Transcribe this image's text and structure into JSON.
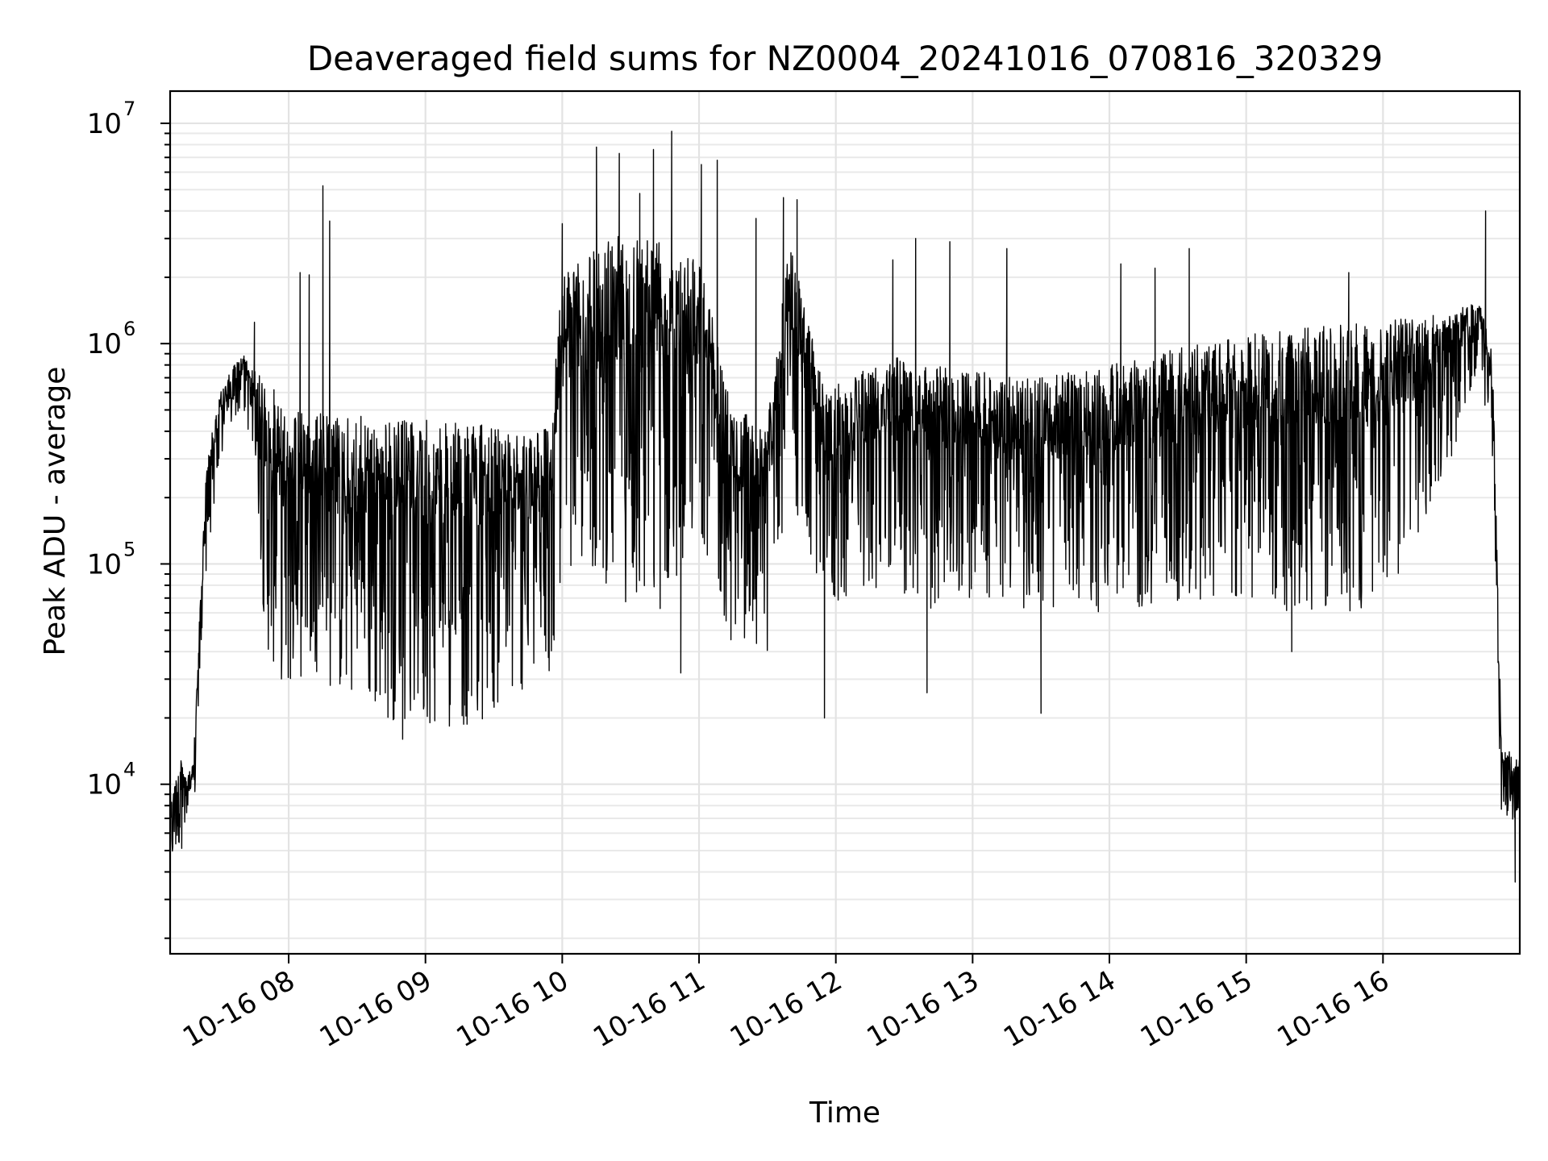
{
  "chart_data": {
    "type": "line",
    "title": "Deaveraged field sums for NZ0004_20241016_070816_320329",
    "xlabel": "Time",
    "ylabel": "Peak ADU - average",
    "y_scale": "log",
    "ylim": [
      1700,
      14000000
    ],
    "xlim": [
      "2024-10-16 07:08",
      "2024-10-16 17:00"
    ],
    "grid": true,
    "grid_minor": true,
    "x_tick_labels": [
      "10-16 08",
      "10-16 09",
      "10-16 10",
      "10-16 11",
      "10-16 12",
      "10-16 13",
      "10-16 14",
      "10-16 15",
      "10-16 16"
    ],
    "y_tick_labels": [
      {
        "value": 10000,
        "base": "10",
        "exp": "4"
      },
      {
        "value": 100000,
        "base": "10",
        "exp": "5"
      },
      {
        "value": 1000000,
        "base": "10",
        "exp": "6"
      },
      {
        "value": 10000000,
        "base": "10",
        "exp": "7"
      }
    ],
    "series": [
      {
        "color": "#000000",
        "envelope": [
          {
            "t": "07:08",
            "low": 4000,
            "high": 9000
          },
          {
            "t": "07:12",
            "low": 5000,
            "high": 13000
          },
          {
            "t": "07:18",
            "low": 5500,
            "high": 12000
          },
          {
            "t": "07:24",
            "low": 100000,
            "high": 300000
          },
          {
            "t": "07:30",
            "low": 280000,
            "high": 600000
          },
          {
            "t": "07:36",
            "low": 450000,
            "high": 800000
          },
          {
            "t": "07:40",
            "low": 500000,
            "high": 900000
          },
          {
            "t": "07:45",
            "low": 300000,
            "high": 750000
          },
          {
            "t": "07:50",
            "low": 40000,
            "high": 700000
          },
          {
            "t": "08:00",
            "low": 25000,
            "high": 500000
          },
          {
            "t": "08:10",
            "low": 35000,
            "high": 500000
          },
          {
            "t": "08:20",
            "low": 25000,
            "high": 480000
          },
          {
            "t": "08:40",
            "low": 20000,
            "high": 460000
          },
          {
            "t": "09:00",
            "low": 18000,
            "high": 450000
          },
          {
            "t": "09:20",
            "low": 18000,
            "high": 430000
          },
          {
            "t": "09:40",
            "low": 25000,
            "high": 420000
          },
          {
            "t": "09:55",
            "low": 30000,
            "high": 450000
          },
          {
            "t": "10:00",
            "low": 100000,
            "high": 2000000
          },
          {
            "t": "10:20",
            "low": 80000,
            "high": 3000000
          },
          {
            "t": "10:40",
            "low": 50000,
            "high": 3500000
          },
          {
            "t": "11:00",
            "low": 150000,
            "high": 2500000
          },
          {
            "t": "11:15",
            "low": 40000,
            "high": 500000
          },
          {
            "t": "11:30",
            "low": 40000,
            "high": 450000
          },
          {
            "t": "11:40",
            "low": 200000,
            "high": 3000000
          },
          {
            "t": "11:55",
            "low": 60000,
            "high": 600000
          },
          {
            "t": "12:20",
            "low": 80000,
            "high": 900000
          },
          {
            "t": "12:40",
            "low": 60000,
            "high": 800000
          },
          {
            "t": "13:00",
            "low": 70000,
            "high": 750000
          },
          {
            "t": "13:30",
            "low": 60000,
            "high": 700000
          },
          {
            "t": "14:00",
            "low": 60000,
            "high": 800000
          },
          {
            "t": "14:30",
            "low": 60000,
            "high": 950000
          },
          {
            "t": "15:00",
            "low": 60000,
            "high": 1100000
          },
          {
            "t": "15:30",
            "low": 60000,
            "high": 1200000
          },
          {
            "t": "16:00",
            "low": 60000,
            "high": 1300000
          },
          {
            "t": "16:30",
            "low": 300000,
            "high": 1400000
          },
          {
            "t": "16:42",
            "low": 800000,
            "high": 1600000
          },
          {
            "t": "16:48",
            "low": 300000,
            "high": 900000
          },
          {
            "t": "16:52",
            "low": 6000,
            "high": 15000
          },
          {
            "t": "17:00",
            "low": 7000,
            "high": 13000
          }
        ],
        "spikes": [
          {
            "t": "07:45",
            "value": 1250000
          },
          {
            "t": "08:05",
            "value": 2100000
          },
          {
            "t": "08:09",
            "value": 2050000
          },
          {
            "t": "08:15",
            "value": 5200000
          },
          {
            "t": "08:18",
            "value": 3600000
          },
          {
            "t": "08:50",
            "value": 16000
          },
          {
            "t": "10:00",
            "value": 3500000
          },
          {
            "t": "10:15",
            "value": 7800000
          },
          {
            "t": "10:25",
            "value": 7300000
          },
          {
            "t": "10:34",
            "value": 4800000
          },
          {
            "t": "10:40",
            "value": 7600000
          },
          {
            "t": "10:48",
            "value": 9200000
          },
          {
            "t": "10:52",
            "value": 32000
          },
          {
            "t": "11:01",
            "value": 6500000
          },
          {
            "t": "11:08",
            "value": 6800000
          },
          {
            "t": "11:25",
            "value": 3700000
          },
          {
            "t": "11:37",
            "value": 4600000
          },
          {
            "t": "11:43",
            "value": 4500000
          },
          {
            "t": "11:55",
            "value": 20000
          },
          {
            "t": "12:25",
            "value": 2400000
          },
          {
            "t": "12:35",
            "value": 3000000
          },
          {
            "t": "12:40",
            "value": 26000
          },
          {
            "t": "12:50",
            "value": 2900000
          },
          {
            "t": "13:15",
            "value": 2700000
          },
          {
            "t": "13:30",
            "value": 21000
          },
          {
            "t": "14:05",
            "value": 2300000
          },
          {
            "t": "14:20",
            "value": 2200000
          },
          {
            "t": "14:35",
            "value": 2700000
          },
          {
            "t": "15:20",
            "value": 40000
          },
          {
            "t": "15:45",
            "value": 2100000
          },
          {
            "t": "16:45",
            "value": 4000000
          },
          {
            "t": "16:58",
            "value": 3600
          }
        ]
      }
    ]
  }
}
